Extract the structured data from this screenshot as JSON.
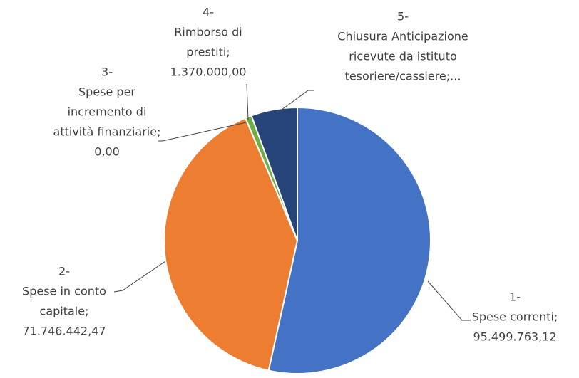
{
  "chart_data": {
    "type": "pie",
    "categories": [
      [
        "1-",
        "Spese correnti;"
      ],
      [
        "2-",
        "Spese in conto",
        "capitale;"
      ],
      [
        "3-",
        "Spese per",
        "incremento di",
        "attività finanziarie;"
      ],
      [
        "4-",
        "Rimborso di",
        "prestiti;"
      ],
      [
        "5-",
        "Chiusura Anticipazione",
        "ricevute da istituto",
        "tesoriere/cassiere;..."
      ]
    ],
    "values": [
      95499763.12,
      71746442.47,
      0,
      1370000,
      10000000
    ],
    "value_labels": [
      "95.499.763,12",
      "71.746.442,47",
      "0,00",
      "1.370.000,00",
      null
    ],
    "colors": [
      "#4472c4",
      "#ed7d31",
      "#a5a5a5",
      "#70ad47",
      "#264478"
    ]
  }
}
